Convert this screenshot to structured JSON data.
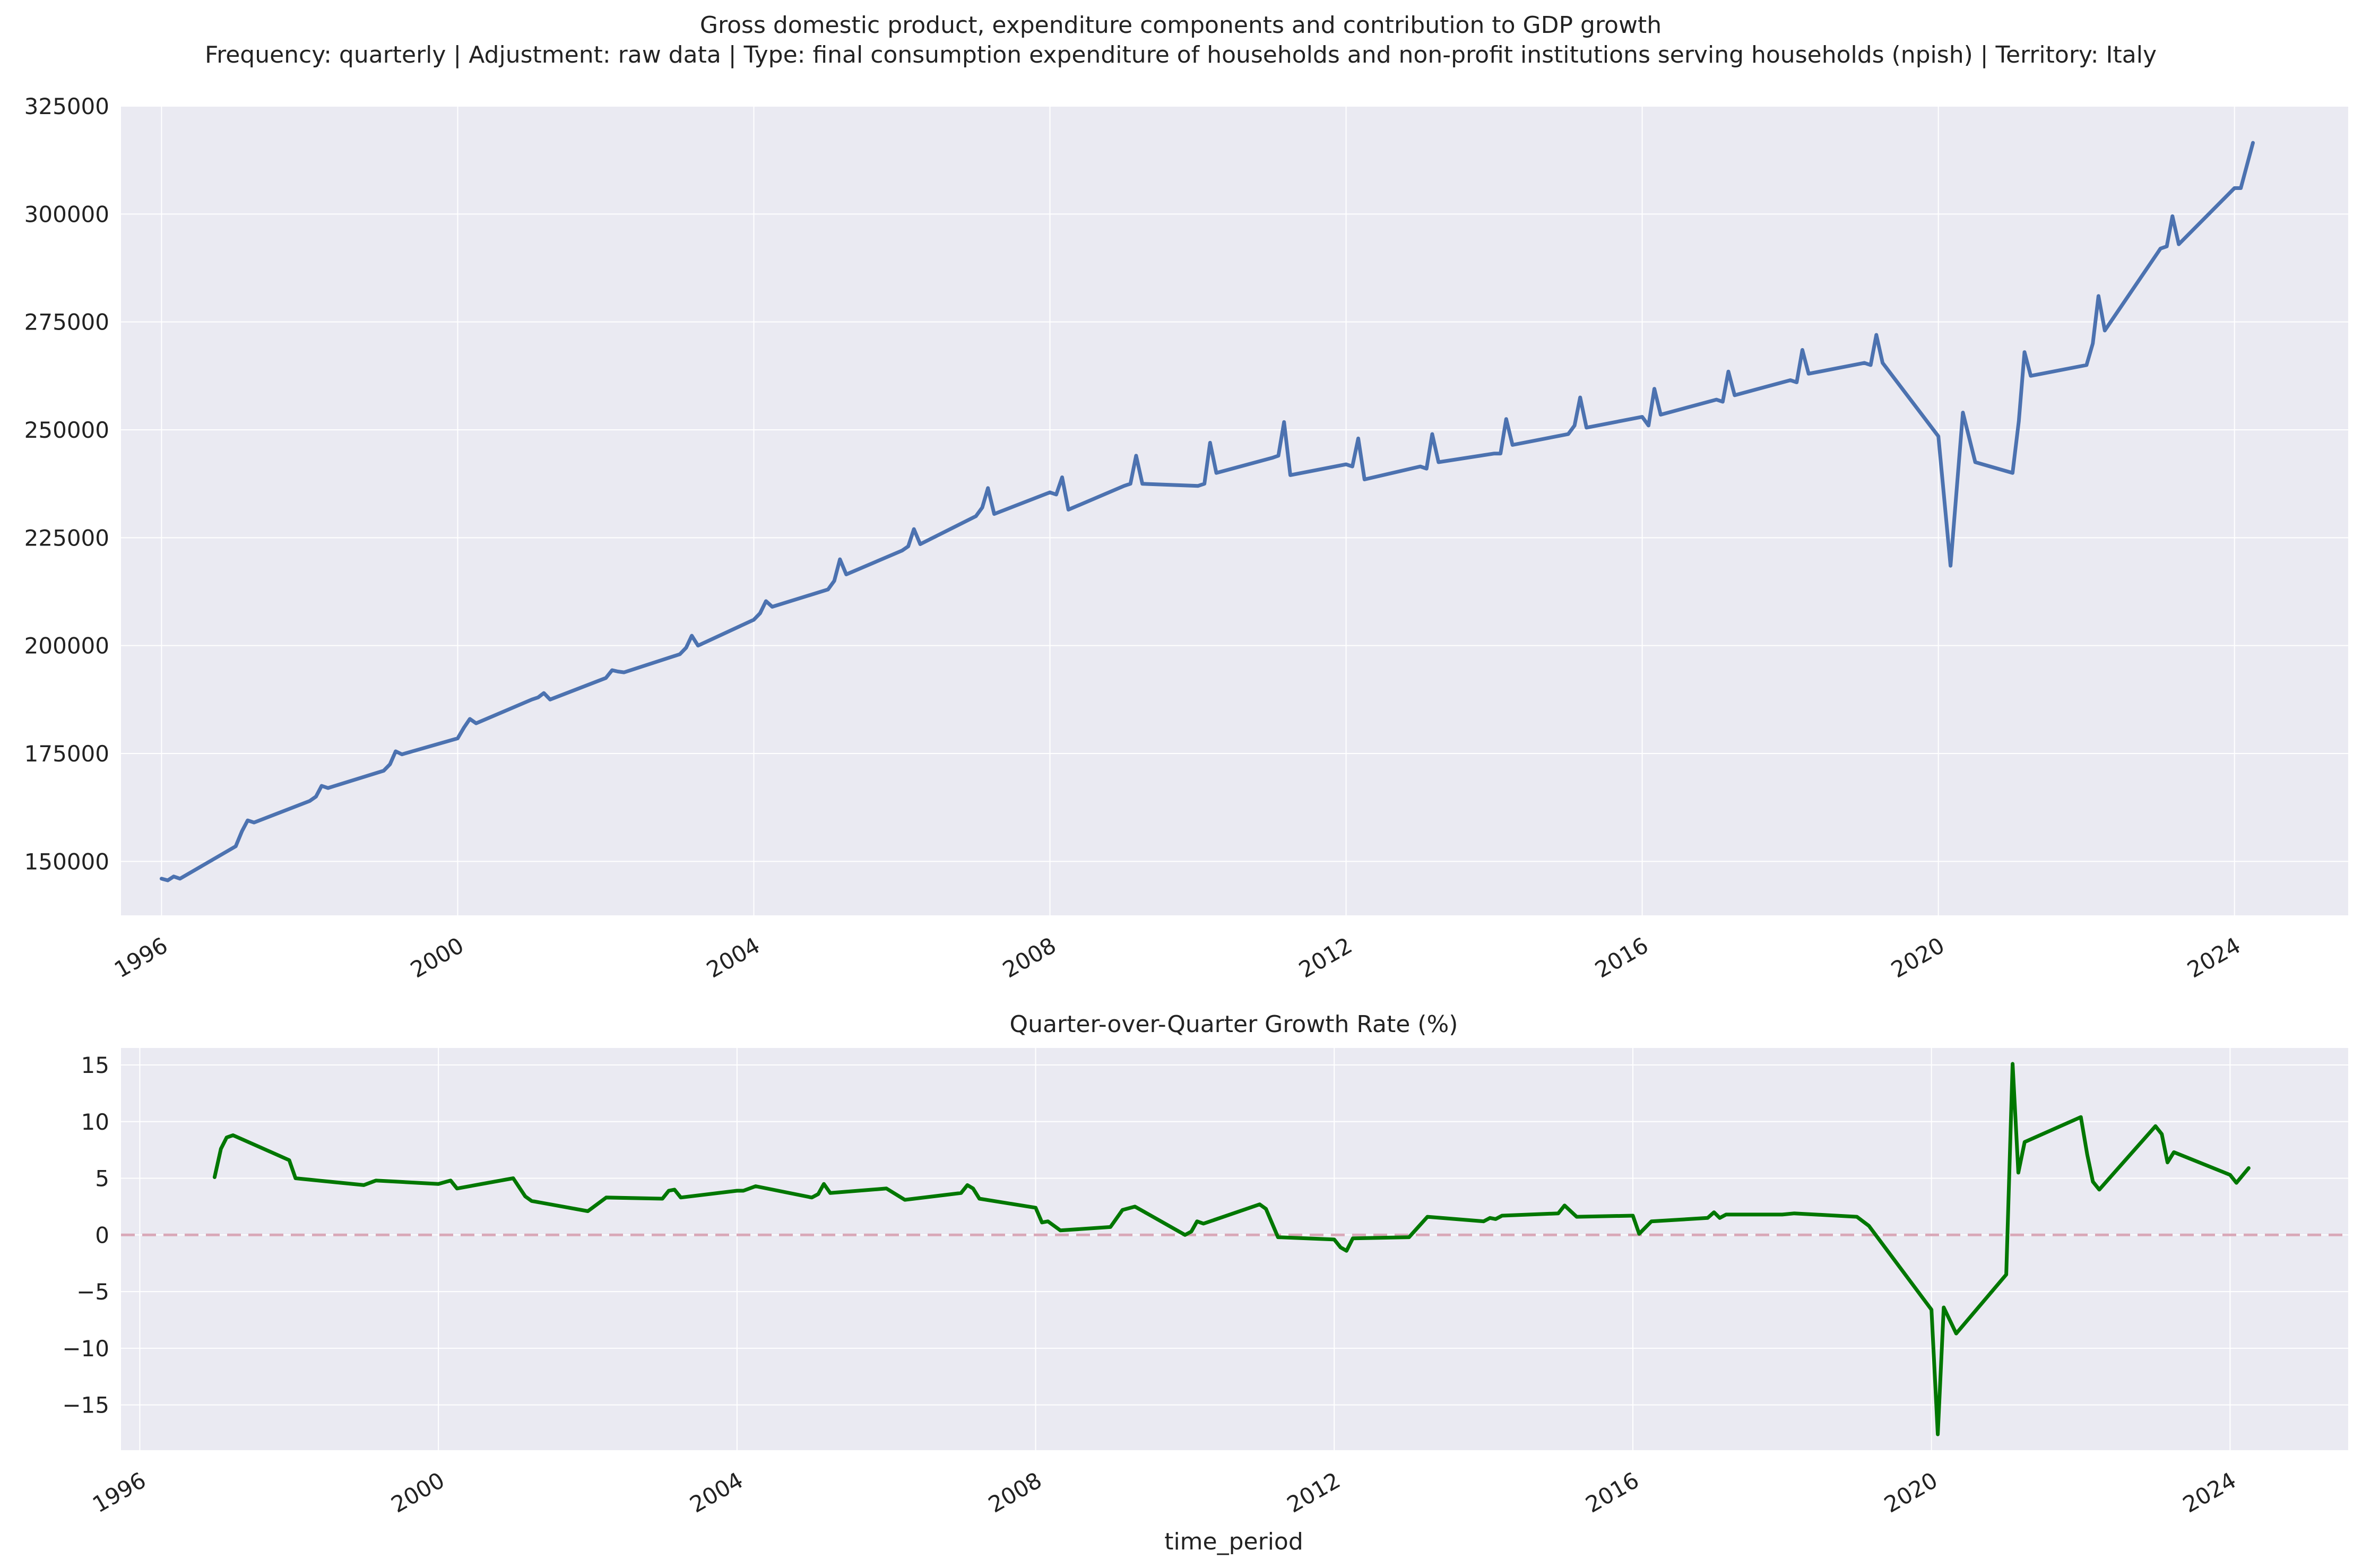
{
  "figure": {
    "suptitle_line1": "Gross domestic product, expenditure components and contribution to GDP growth",
    "suptitle_line2": "Frequency: quarterly | Adjustment: raw data | Type: final consumption expenditure of households and non-profit institutions serving households (npish) | Territory: Italy"
  },
  "colors": {
    "background": "#EAEAF2",
    "grid": "#ffffff",
    "level_line": "#4C72B0",
    "growth_line": "#007700",
    "zero_line": "#D9A8B8"
  },
  "chart_data": [
    {
      "type": "line",
      "title": "",
      "xlabel": "",
      "ylabel": "",
      "x_axis": "date",
      "xlim": [
        "1995-06-15",
        "2025-07-15"
      ],
      "ylim": [
        137500,
        325000
      ],
      "yticks": [
        150000,
        175000,
        200000,
        225000,
        250000,
        275000,
        300000,
        325000
      ],
      "xtick_labels": [
        "1996",
        "2000",
        "2004",
        "2008",
        "2012",
        "2016",
        "2020",
        "2024"
      ],
      "grid": true,
      "series": [
        {
          "points": [
            [
              "1996-01-01",
              146000
            ],
            [
              "1996-02-01",
              145600
            ],
            [
              "1996-03-01",
              146500
            ],
            [
              "1996-04-01",
              146000
            ],
            [
              "1997-01-01",
              153500
            ],
            [
              "1997-02-01",
              157000
            ],
            [
              "1997-03-01",
              159500
            ],
            [
              "1997-04-01",
              159000
            ],
            [
              "1998-01-01",
              164000
            ],
            [
              "1998-02-01",
              165000
            ],
            [
              "1998-03-01",
              167500
            ],
            [
              "1998-04-01",
              167000
            ],
            [
              "1999-01-01",
              171000
            ],
            [
              "1999-02-01",
              172500
            ],
            [
              "1999-03-01",
              175500
            ],
            [
              "1999-04-01",
              174800
            ],
            [
              "2000-01-01",
              178500
            ],
            [
              "2000-02-01",
              181000
            ],
            [
              "2000-03-01",
              183000
            ],
            [
              "2000-04-01",
              182000
            ],
            [
              "2001-01-01",
              187500
            ],
            [
              "2001-02-01",
              188000
            ],
            [
              "2001-03-01",
              189000
            ],
            [
              "2001-04-01",
              187500
            ],
            [
              "2002-01-01",
              192500
            ],
            [
              "2002-02-01",
              194300
            ],
            [
              "2002-03-01",
              194000
            ],
            [
              "2002-04-01",
              193800
            ],
            [
              "2003-01-01",
              198000
            ],
            [
              "2003-02-01",
              199500
            ],
            [
              "2003-03-01",
              202300
            ],
            [
              "2003-04-01",
              200000
            ],
            [
              "2004-01-01",
              206000
            ],
            [
              "2004-02-01",
              207500
            ],
            [
              "2004-03-01",
              210300
            ],
            [
              "2004-04-01",
              209000
            ],
            [
              "2005-01-01",
              213000
            ],
            [
              "2005-02-01",
              215000
            ],
            [
              "2005-03-01",
              220000
            ],
            [
              "2005-04-01",
              216500
            ],
            [
              "2006-01-01",
              222000
            ],
            [
              "2006-02-01",
              223000
            ],
            [
              "2006-03-01",
              227000
            ],
            [
              "2006-04-01",
              223500
            ],
            [
              "2007-01-01",
              230000
            ],
            [
              "2007-02-01",
              232000
            ],
            [
              "2007-03-01",
              236500
            ],
            [
              "2007-04-01",
              230500
            ],
            [
              "2008-01-01",
              235500
            ],
            [
              "2008-02-01",
              235000
            ],
            [
              "2008-03-01",
              239000
            ],
            [
              "2008-04-01",
              231500
            ],
            [
              "2009-01-01",
              237000
            ],
            [
              "2009-02-01",
              237500
            ],
            [
              "2009-03-01",
              244000
            ],
            [
              "2009-04-01",
              237500
            ],
            [
              "2010-01-01",
              237000
            ],
            [
              "2010-02-01",
              237500
            ],
            [
              "2010-03-01",
              247000
            ],
            [
              "2010-04-01",
              240000
            ],
            [
              "2011-01-01",
              243500
            ],
            [
              "2011-02-01",
              244000
            ],
            [
              "2011-03-01",
              251800
            ],
            [
              "2011-04-01",
              239500
            ],
            [
              "2012-01-01",
              242000
            ],
            [
              "2012-02-01",
              241500
            ],
            [
              "2012-03-01",
              248000
            ],
            [
              "2012-04-01",
              238500
            ],
            [
              "2013-01-01",
              241500
            ],
            [
              "2013-02-01",
              241000
            ],
            [
              "2013-03-01",
              249000
            ],
            [
              "2013-04-01",
              242500
            ],
            [
              "2014-01-01",
              244500
            ],
            [
              "2014-02-01",
              244500
            ],
            [
              "2014-03-01",
              252500
            ],
            [
              "2014-04-01",
              246500
            ],
            [
              "2015-01-01",
              249000
            ],
            [
              "2015-02-01",
              251000
            ],
            [
              "2015-03-01",
              257500
            ],
            [
              "2015-04-01",
              250500
            ],
            [
              "2016-01-01",
              253000
            ],
            [
              "2016-02-01",
              251000
            ],
            [
              "2016-03-01",
              259500
            ],
            [
              "2016-04-01",
              253500
            ],
            [
              "2017-01-01",
              257000
            ],
            [
              "2017-02-01",
              256500
            ],
            [
              "2017-03-01",
              263500
            ],
            [
              "2017-04-01",
              258000
            ],
            [
              "2018-01-01",
              261500
            ],
            [
              "2018-02-01",
              261000
            ],
            [
              "2018-03-01",
              268500
            ],
            [
              "2018-04-01",
              263000
            ],
            [
              "2019-01-01",
              265500
            ],
            [
              "2019-02-01",
              265000
            ],
            [
              "2019-03-01",
              272000
            ],
            [
              "2019-04-01",
              265500
            ],
            [
              "2020-01-01",
              248500
            ],
            [
              "2020-03-01",
              218500
            ],
            [
              "2020-05-01",
              254000
            ],
            [
              "2020-07-01",
              242500
            ],
            [
              "2021-01-01",
              240000
            ],
            [
              "2021-02-01",
              252000
            ],
            [
              "2021-03-01",
              268000
            ],
            [
              "2021-04-01",
              262500
            ],
            [
              "2022-01-01",
              265000
            ],
            [
              "2022-02-01",
              270000
            ],
            [
              "2022-03-01",
              281000
            ],
            [
              "2022-04-01",
              273000
            ],
            [
              "2023-01-01",
              292000
            ],
            [
              "2023-02-01",
              292500
            ],
            [
              "2023-03-01",
              299500
            ],
            [
              "2023-04-01",
              293000
            ],
            [
              "2024-01-01",
              306000
            ],
            [
              "2024-02-01",
              306000
            ],
            [
              "2024-04-01",
              316500
            ]
          ]
        }
      ]
    },
    {
      "type": "line",
      "title": "Quarter-over-Quarter Growth Rate (%)",
      "xlabel": "time_period",
      "ylabel": "",
      "x_axis": "date",
      "xlim": [
        "1995-10-01",
        "2025-08-01"
      ],
      "ylim": [
        -19,
        16.5
      ],
      "yticks": [
        -15,
        -10,
        -5,
        0,
        5,
        10,
        15
      ],
      "ytick_labels": [
        "−15",
        "−10",
        "−5",
        "0",
        "5",
        "10",
        "15"
      ],
      "xtick_labels": [
        "1996",
        "2000",
        "2004",
        "2008",
        "2012",
        "2016",
        "2020",
        "2024"
      ],
      "reference_line": {
        "y": 0,
        "style": "dashed"
      },
      "grid": true,
      "series": [
        {
          "points": [
            [
              "1997-01-01",
              5.1
            ],
            [
              "1997-02-01",
              7.6
            ],
            [
              "1997-03-01",
              8.6
            ],
            [
              "1997-04-01",
              8.8
            ],
            [
              "1998-01-01",
              6.6
            ],
            [
              "1998-02-01",
              5.0
            ],
            [
              "1999-01-01",
              4.4
            ],
            [
              "1999-03-01",
              4.8
            ],
            [
              "2000-01-01",
              4.5
            ],
            [
              "2000-03-01",
              4.8
            ],
            [
              "2000-04-01",
              4.1
            ],
            [
              "2001-01-01",
              5.0
            ],
            [
              "2001-03-01",
              3.4
            ],
            [
              "2001-04-01",
              3.0
            ],
            [
              "2002-01-01",
              2.1
            ],
            [
              "2002-04-01",
              3.3
            ],
            [
              "2003-01-01",
              3.2
            ],
            [
              "2003-02-01",
              3.9
            ],
            [
              "2003-03-01",
              4.0
            ],
            [
              "2003-04-01",
              3.3
            ],
            [
              "2004-01-01",
              3.9
            ],
            [
              "2004-02-01",
              3.9
            ],
            [
              "2004-04-01",
              4.3
            ],
            [
              "2005-01-01",
              3.3
            ],
            [
              "2005-02-01",
              3.6
            ],
            [
              "2005-03-01",
              4.5
            ],
            [
              "2005-04-01",
              3.7
            ],
            [
              "2006-01-01",
              4.1
            ],
            [
              "2006-04-01",
              3.1
            ],
            [
              "2007-01-01",
              3.7
            ],
            [
              "2007-02-01",
              4.4
            ],
            [
              "2007-03-01",
              4.1
            ],
            [
              "2007-04-01",
              3.2
            ],
            [
              "2008-01-01",
              2.4
            ],
            [
              "2008-02-01",
              1.1
            ],
            [
              "2008-03-01",
              1.2
            ],
            [
              "2008-05-01",
              0.4
            ],
            [
              "2009-01-01",
              0.7
            ],
            [
              "2009-03-01",
              2.2
            ],
            [
              "2009-05-01",
              2.5
            ],
            [
              "2010-01-01",
              0.0
            ],
            [
              "2010-02-01",
              0.3
            ],
            [
              "2010-03-01",
              1.2
            ],
            [
              "2010-04-01",
              1.0
            ],
            [
              "2011-01-01",
              2.7
            ],
            [
              "2011-02-01",
              2.3
            ],
            [
              "2011-04-01",
              -0.2
            ],
            [
              "2012-01-01",
              -0.4
            ],
            [
              "2012-02-01",
              -1.1
            ],
            [
              "2012-03-01",
              -1.4
            ],
            [
              "2012-04-01",
              -0.3
            ],
            [
              "2013-01-01",
              -0.2
            ],
            [
              "2013-04-01",
              1.6
            ],
            [
              "2014-01-01",
              1.2
            ],
            [
              "2014-02-01",
              1.5
            ],
            [
              "2014-03-01",
              1.4
            ],
            [
              "2014-04-01",
              1.7
            ],
            [
              "2015-01-01",
              1.9
            ],
            [
              "2015-02-01",
              2.6
            ],
            [
              "2015-04-01",
              1.6
            ],
            [
              "2016-01-01",
              1.7
            ],
            [
              "2016-02-01",
              0.1
            ],
            [
              "2016-04-01",
              1.2
            ],
            [
              "2017-01-01",
              1.5
            ],
            [
              "2017-02-01",
              2.0
            ],
            [
              "2017-03-01",
              1.5
            ],
            [
              "2017-04-01",
              1.8
            ],
            [
              "2018-01-01",
              1.8
            ],
            [
              "2018-03-01",
              1.9
            ],
            [
              "2019-01-01",
              1.6
            ],
            [
              "2019-03-01",
              0.8
            ],
            [
              "2020-01-01",
              -6.6
            ],
            [
              "2020-02-01",
              -17.6
            ],
            [
              "2020-03-01",
              -6.4
            ],
            [
              "2020-05-01",
              -8.7
            ],
            [
              "2021-01-01",
              -3.5
            ],
            [
              "2021-02-01",
              15.1
            ],
            [
              "2021-03-01",
              5.5
            ],
            [
              "2021-04-01",
              8.2
            ],
            [
              "2022-01-01",
              10.4
            ],
            [
              "2022-02-01",
              7.1
            ],
            [
              "2022-03-01",
              4.7
            ],
            [
              "2022-04-01",
              4.0
            ],
            [
              "2023-01-01",
              9.6
            ],
            [
              "2023-02-01",
              8.9
            ],
            [
              "2023-03-01",
              6.4
            ],
            [
              "2023-04-01",
              7.3
            ],
            [
              "2024-01-01",
              5.3
            ],
            [
              "2024-02-01",
              4.6
            ],
            [
              "2024-04-01",
              5.9
            ]
          ]
        }
      ]
    }
  ]
}
